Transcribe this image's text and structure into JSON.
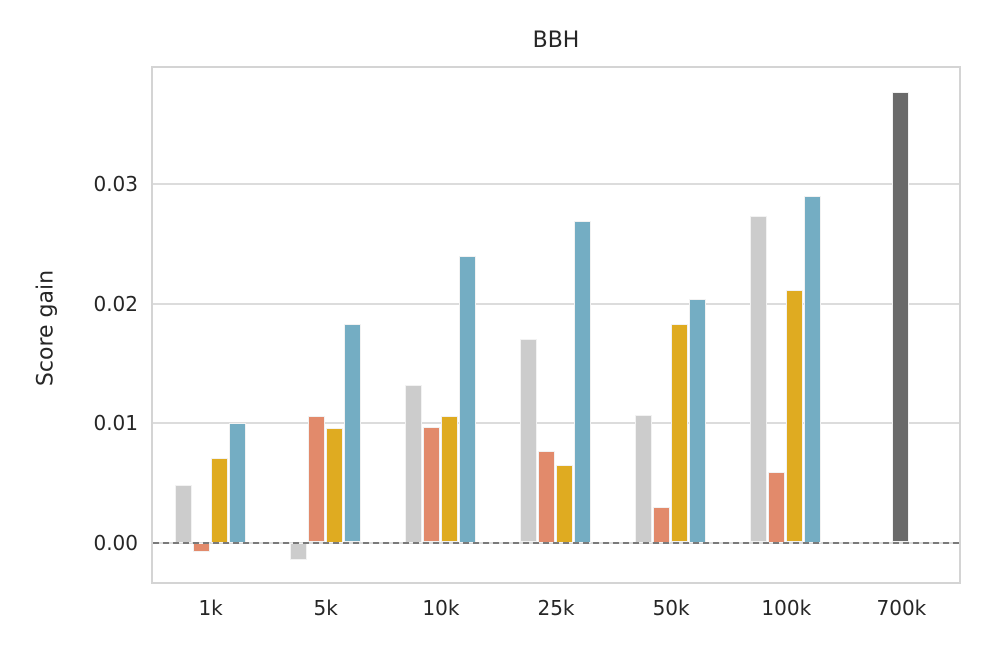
{
  "chart_data": {
    "type": "bar",
    "title": "BBH",
    "xlabel": "",
    "ylabel": "Score gain",
    "categories": [
      "1k",
      "5k",
      "10k",
      "25k",
      "50k",
      "100k",
      "700k"
    ],
    "series": [
      {
        "name": "light-gray",
        "color": "#cccccc",
        "values": [
          0.0048,
          -0.0015,
          0.0132,
          0.017,
          0.0107,
          0.0273,
          null
        ]
      },
      {
        "name": "orange",
        "color": "#e28a6b",
        "values": [
          -0.0008,
          0.0106,
          0.0097,
          0.0077,
          0.003,
          0.0059,
          null
        ]
      },
      {
        "name": "gold",
        "color": "#dfab21",
        "values": [
          0.0071,
          0.0096,
          0.0106,
          0.0065,
          0.0183,
          0.0211,
          null
        ]
      },
      {
        "name": "blue",
        "color": "#74adc3",
        "values": [
          0.01,
          0.0183,
          0.024,
          0.0269,
          0.0204,
          0.029,
          null
        ]
      },
      {
        "name": "dark-gray",
        "color": "#6a6a6a",
        "values": [
          null,
          null,
          null,
          null,
          null,
          null,
          0.0377
        ]
      }
    ],
    "yticks": [
      0.0,
      0.01,
      0.02,
      0.03
    ],
    "ytick_labels": [
      "0.00",
      "0.01",
      "0.02",
      "0.03"
    ],
    "ylim": [
      -0.0033,
      0.0397
    ],
    "grid": true,
    "legend": "none",
    "zero_line": {
      "value": 0,
      "style": "dashed",
      "color": "#7a7a7a"
    },
    "colors": {
      "grid": "#dcdcdc",
      "plot_border": "#d4d4d4",
      "text": "#262626",
      "background": "#ffffff"
    }
  }
}
